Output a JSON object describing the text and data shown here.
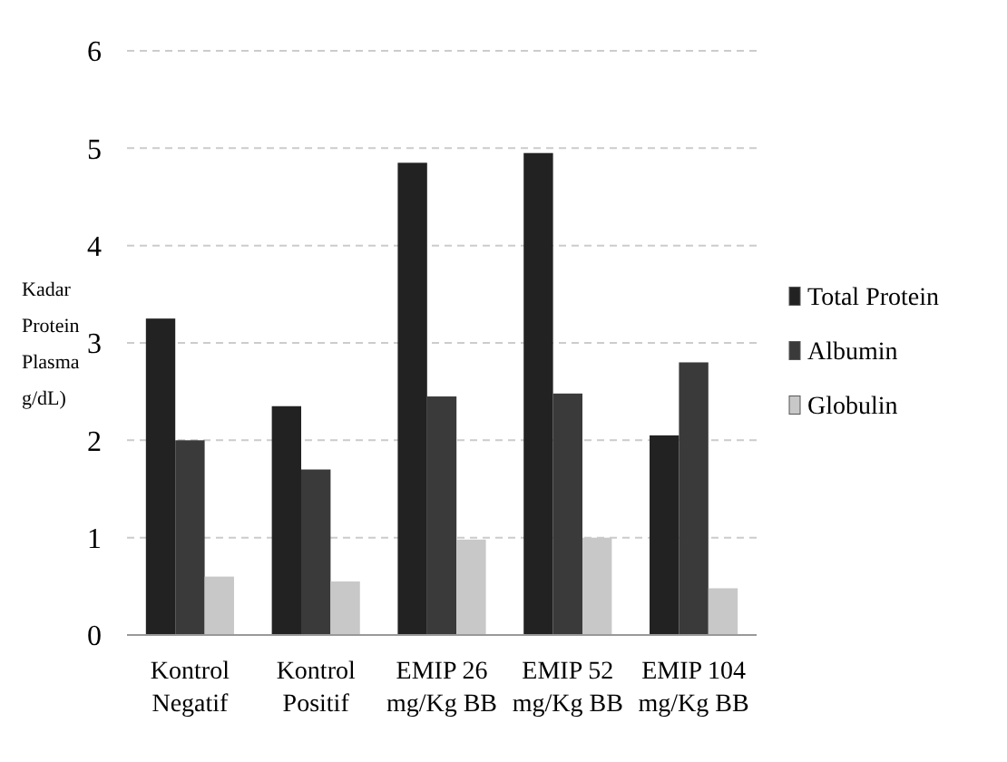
{
  "chart_data": {
    "type": "bar",
    "ylabel": "Kadar Protein Plasma g/dL)",
    "categories": [
      "Kontrol Negatif",
      "Kontrol Positif",
      "EMIP 26 mg/Kg BB",
      "EMIP 52 mg/Kg BB",
      "EMIP 104 mg/Kg BB"
    ],
    "series": [
      {
        "name": "Total Protein",
        "color": "#222222",
        "values": [
          3.25,
          2.35,
          4.85,
          4.95,
          2.05
        ]
      },
      {
        "name": "Albumin",
        "color": "#3a3a3a",
        "values": [
          2.0,
          1.7,
          2.45,
          2.48,
          2.8
        ]
      },
      {
        "name": "Globulin",
        "color": "#c8c8c8",
        "values": [
          0.6,
          0.55,
          0.98,
          1.0,
          0.48
        ]
      }
    ],
    "ylim": [
      0,
      6
    ],
    "yticks": [
      0,
      1,
      2,
      3,
      4,
      5,
      6
    ],
    "grid": "y",
    "legend": "right"
  }
}
